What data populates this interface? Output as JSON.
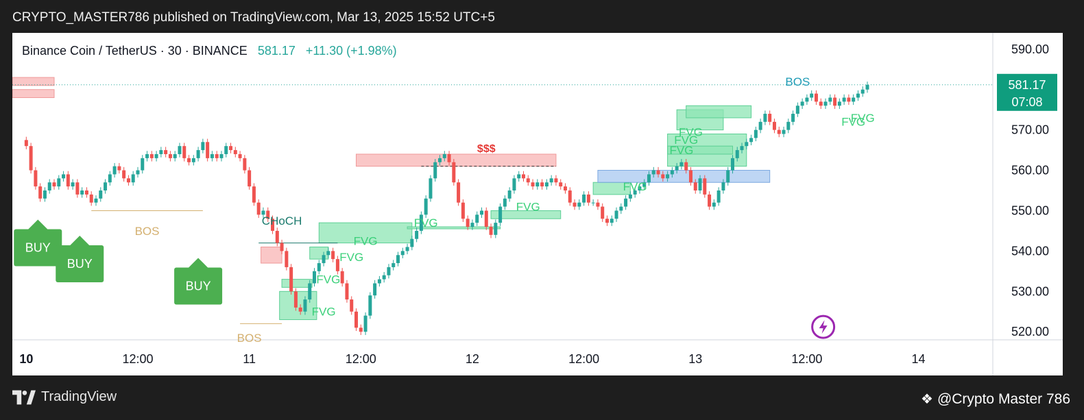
{
  "header": {
    "published_line": "CRYPTO_MASTER786 published on TradingView.com, Mar 13, 2025 15:52 UTC+5"
  },
  "legend": {
    "symbol_line": "Binance Coin / TetherUS · 30 · BINANCE",
    "last_price": "581.17",
    "change": "+11.30 (+1.98%)"
  },
  "price_tag": {
    "price": "581.17",
    "countdown": "07:08",
    "color": "#0f9d7e"
  },
  "colors": {
    "up": "#26a69a",
    "down": "#ef5350",
    "fvg_fill": "#8ee6b4",
    "supply_fill": "#f8b4b4",
    "blue_fill": "#a8c8f0",
    "buy_green": "#4caf50",
    "bos_color": "#d4b070",
    "choch_color": "#1b7a6d"
  },
  "footer": {
    "brand": "TradingView",
    "watermark": "@Crypto Master 786"
  },
  "chart_data": {
    "type": "candlestick",
    "interval": "30",
    "y_ticks": [
      "590.00",
      "580.00",
      "570.00",
      "560.00",
      "550.00",
      "540.00",
      "530.00",
      "520.00"
    ],
    "ylim": [
      518,
      592
    ],
    "x_ticks": [
      {
        "label": "10",
        "x": 0,
        "bold": true
      },
      {
        "label": "12:00",
        "x": 24,
        "bold": false
      },
      {
        "label": "11",
        "x": 48,
        "bold": false
      },
      {
        "label": "12:00",
        "x": 72,
        "bold": false
      },
      {
        "label": "12",
        "x": 96,
        "bold": false
      },
      {
        "label": "12:00",
        "x": 120,
        "bold": false
      },
      {
        "label": "13",
        "x": 144,
        "bold": false
      },
      {
        "label": "12:00",
        "x": 168,
        "bold": false
      },
      {
        "label": "14",
        "x": 192,
        "bold": false
      }
    ],
    "xlim": [
      -3,
      208
    ],
    "close": [
      566,
      560,
      556,
      553,
      555,
      557,
      556,
      558,
      559,
      556,
      557,
      554,
      555,
      554,
      552,
      553,
      555,
      557,
      559,
      561,
      560,
      558,
      557,
      559,
      560,
      563,
      564,
      563,
      564,
      565,
      564,
      563,
      564,
      566,
      563,
      562,
      563,
      565,
      567,
      563,
      564,
      563,
      564,
      566,
      565,
      564,
      563,
      560,
      556,
      552,
      549,
      550,
      548,
      545,
      542,
      540,
      536,
      530,
      526,
      525,
      528,
      532,
      535,
      537,
      539,
      540,
      538,
      535,
      532,
      528,
      525,
      521,
      520,
      524,
      529,
      532,
      533,
      534,
      536,
      537,
      539,
      540,
      541,
      543,
      545,
      549,
      553,
      558,
      562,
      563,
      564,
      562,
      557,
      552,
      548,
      546,
      547,
      549,
      550,
      546,
      544,
      547,
      551,
      553,
      555,
      558,
      559,
      558,
      557,
      556,
      557,
      556,
      557,
      558,
      557,
      556,
      555,
      552,
      551,
      552,
      554,
      552,
      552,
      551,
      548,
      547,
      548,
      550,
      551,
      553,
      554,
      555,
      556,
      557,
      559,
      560,
      559,
      558,
      559,
      560,
      561,
      562,
      560,
      557,
      555,
      558,
      554,
      551,
      552,
      555,
      557,
      560,
      563,
      565,
      566,
      567,
      568,
      570,
      572,
      574,
      572,
      570,
      569,
      570,
      572,
      574,
      576,
      577,
      578,
      579,
      577,
      576,
      577,
      578,
      576,
      577,
      578,
      577,
      578,
      579,
      580,
      581.17
    ],
    "annotations": {
      "bos_labels": [
        "BOS",
        "BOS",
        "BOS"
      ],
      "choch_label": "CHoCH",
      "liquidity_label": "$$$",
      "fvg_label": "FVG",
      "buy_label": "BUY"
    }
  }
}
